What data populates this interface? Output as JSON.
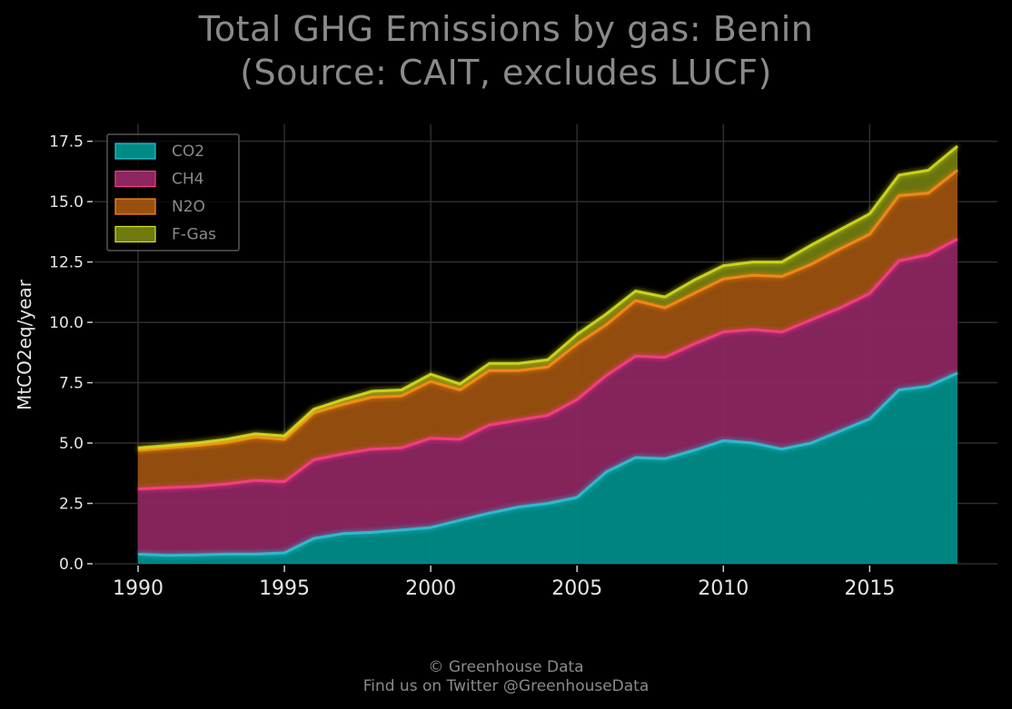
{
  "chart_data": {
    "type": "area",
    "stacked": true,
    "title": "Total GHG Emissions by gas: Benin",
    "subtitle": "(Source: CAIT, excludes LUCF)",
    "xlabel": "",
    "ylabel": "MtCO2eq/year",
    "xlim": [
      1989,
      2019
    ],
    "ylim": [
      0,
      18.2
    ],
    "x_ticks": [
      "1990",
      "1995",
      "2000",
      "2005",
      "2010",
      "2015"
    ],
    "y_ticks": [
      "0.0",
      "2.5",
      "5.0",
      "7.5",
      "10.0",
      "12.5",
      "15.0",
      "17.5"
    ],
    "grid": true,
    "legend_position": "top-left",
    "x": [
      1990,
      1991,
      1992,
      1993,
      1994,
      1995,
      1996,
      1997,
      1998,
      1999,
      2000,
      2001,
      2002,
      2003,
      2004,
      2005,
      2006,
      2007,
      2008,
      2009,
      2010,
      2011,
      2012,
      2013,
      2014,
      2015,
      2016,
      2017,
      2018
    ],
    "series": [
      {
        "name": "CO2",
        "color": "#008b87",
        "line_color": "#2bc4d6",
        "values": [
          0.4,
          0.35,
          0.37,
          0.4,
          0.4,
          0.45,
          1.05,
          1.25,
          1.3,
          1.4,
          1.5,
          1.8,
          2.1,
          2.35,
          2.5,
          2.75,
          3.8,
          4.4,
          4.35,
          4.7,
          5.1,
          5.0,
          4.75,
          5.0,
          5.5,
          6.0,
          7.2,
          7.35,
          7.9
        ]
      },
      {
        "name": "CH4",
        "color": "#8c2560",
        "line_color": "#ff3d8b",
        "values": [
          2.7,
          2.8,
          2.83,
          2.9,
          3.05,
          2.95,
          3.25,
          3.3,
          3.45,
          3.4,
          3.7,
          3.35,
          3.65,
          3.6,
          3.65,
          4.05,
          4.0,
          4.2,
          4.2,
          4.4,
          4.5,
          4.7,
          4.85,
          5.1,
          5.1,
          5.2,
          5.35,
          5.45,
          5.55
        ]
      },
      {
        "name": "N2O",
        "color": "#99500f",
        "line_color": "#ff8c1a",
        "values": [
          1.6,
          1.65,
          1.7,
          1.72,
          1.8,
          1.75,
          1.95,
          2.05,
          2.15,
          2.15,
          2.35,
          2.05,
          2.25,
          2.05,
          2.0,
          2.3,
          2.1,
          2.3,
          2.05,
          2.1,
          2.2,
          2.25,
          2.3,
          2.3,
          2.45,
          2.45,
          2.7,
          2.55,
          2.85
        ]
      },
      {
        "name": "F-Gas",
        "color": "#6f7a10",
        "line_color": "#d8e21c",
        "values": [
          0.1,
          0.1,
          0.1,
          0.13,
          0.13,
          0.15,
          0.15,
          0.2,
          0.25,
          0.25,
          0.3,
          0.25,
          0.3,
          0.3,
          0.3,
          0.4,
          0.45,
          0.4,
          0.45,
          0.55,
          0.55,
          0.55,
          0.6,
          0.8,
          0.8,
          0.85,
          0.85,
          0.95,
          1.0
        ]
      }
    ],
    "footer": [
      "© Greenhouse Data",
      "Find us on Twitter @GreenhouseData"
    ]
  }
}
